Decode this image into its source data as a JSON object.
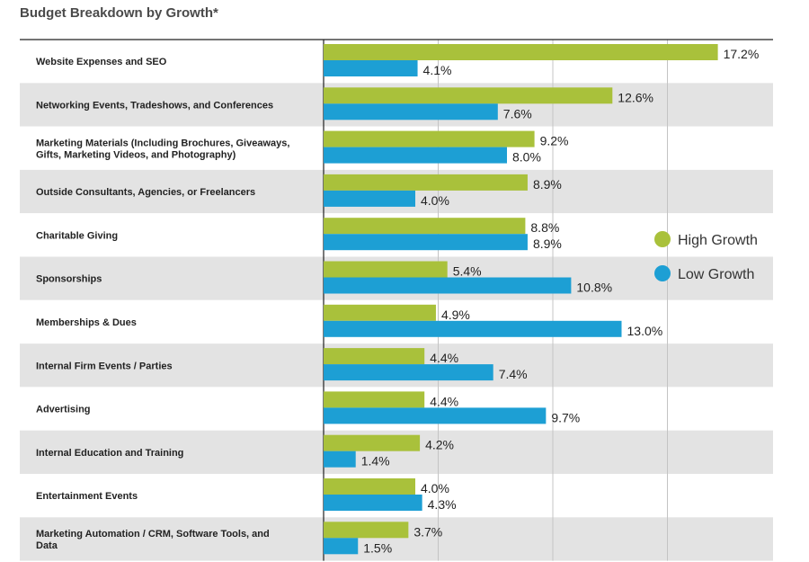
{
  "chart_data": {
    "type": "bar",
    "orientation": "horizontal",
    "title": "Budget Breakdown by Growth*",
    "xlabel": "",
    "ylabel": "",
    "xlim": [
      0,
      20
    ],
    "grid": true,
    "legend_position": "right",
    "categories": [
      [
        "Website Expenses and SEO"
      ],
      [
        "Networking Events, Tradeshows, and Conferences"
      ],
      [
        "Marketing Materials (Including Brochures, Giveaways,",
        "Gifts, Marketing Videos, and Photography)"
      ],
      [
        "Outside Consultants, Agencies, or Freelancers"
      ],
      [
        "Charitable Giving"
      ],
      [
        "Sponsorships"
      ],
      [
        "Memberships & Dues"
      ],
      [
        "Internal Firm Events / Parties"
      ],
      [
        "Advertising"
      ],
      [
        "Internal Education and Training"
      ],
      [
        "Entertainment Events"
      ],
      [
        "Marketing Automation / CRM, Software Tools, and",
        "Data"
      ]
    ],
    "series": [
      {
        "name": "High Growth",
        "color": "#a9c13b",
        "values": [
          17.2,
          12.6,
          9.2,
          8.9,
          8.8,
          5.4,
          4.9,
          4.4,
          4.4,
          4.2,
          4.0,
          3.7
        ],
        "labels": [
          "17.2%",
          "12.6%",
          "9.2%",
          "8.9%",
          "8.8%",
          "5.4%",
          "4.9%",
          "4.4%",
          "4.4%",
          "4.2%",
          "4.0%",
          "3.7%"
        ]
      },
      {
        "name": "Low Growth",
        "color": "#1d9fd4",
        "values": [
          4.1,
          7.6,
          8.0,
          4.0,
          8.9,
          10.8,
          13.0,
          7.4,
          9.7,
          1.4,
          4.3,
          1.5
        ],
        "labels": [
          "4.1%",
          "7.6%",
          "8.0%",
          "4.0%",
          "8.9%",
          "10.8%",
          "13.0%",
          "7.4%",
          "9.7%",
          "1.4%",
          "4.3%",
          "1.5%"
        ]
      }
    ]
  }
}
